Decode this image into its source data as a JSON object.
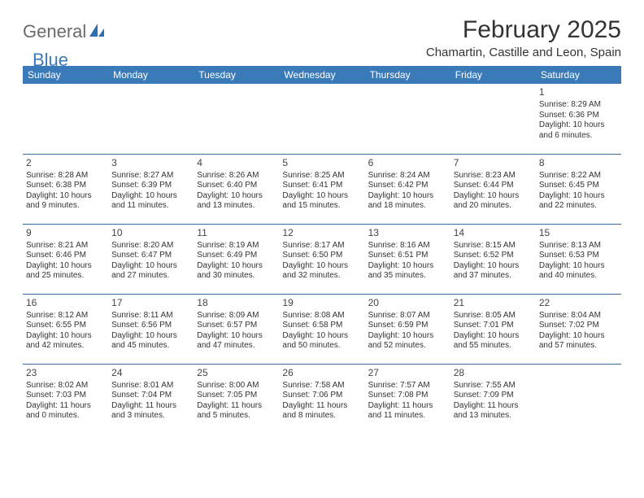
{
  "brand": {
    "part1": "General",
    "part2": "Blue"
  },
  "title": "February 2025",
  "location": "Chamartin, Castille and Leon, Spain",
  "colors": {
    "header_bg": "#3b7ab8",
    "header_text": "#ffffff",
    "row_border": "#3b6a97",
    "body_text": "#333333",
    "logo_gray": "#6b6b6b",
    "logo_blue": "#3b7ab8",
    "page_bg": "#ffffff"
  },
  "weekdays": [
    "Sunday",
    "Monday",
    "Tuesday",
    "Wednesday",
    "Thursday",
    "Friday",
    "Saturday"
  ],
  "weeks": [
    [
      null,
      null,
      null,
      null,
      null,
      null,
      {
        "n": "1",
        "sr": "Sunrise: 8:29 AM",
        "ss": "Sunset: 6:36 PM",
        "d1": "Daylight: 10 hours",
        "d2": "and 6 minutes."
      }
    ],
    [
      {
        "n": "2",
        "sr": "Sunrise: 8:28 AM",
        "ss": "Sunset: 6:38 PM",
        "d1": "Daylight: 10 hours",
        "d2": "and 9 minutes."
      },
      {
        "n": "3",
        "sr": "Sunrise: 8:27 AM",
        "ss": "Sunset: 6:39 PM",
        "d1": "Daylight: 10 hours",
        "d2": "and 11 minutes."
      },
      {
        "n": "4",
        "sr": "Sunrise: 8:26 AM",
        "ss": "Sunset: 6:40 PM",
        "d1": "Daylight: 10 hours",
        "d2": "and 13 minutes."
      },
      {
        "n": "5",
        "sr": "Sunrise: 8:25 AM",
        "ss": "Sunset: 6:41 PM",
        "d1": "Daylight: 10 hours",
        "d2": "and 15 minutes."
      },
      {
        "n": "6",
        "sr": "Sunrise: 8:24 AM",
        "ss": "Sunset: 6:42 PM",
        "d1": "Daylight: 10 hours",
        "d2": "and 18 minutes."
      },
      {
        "n": "7",
        "sr": "Sunrise: 8:23 AM",
        "ss": "Sunset: 6:44 PM",
        "d1": "Daylight: 10 hours",
        "d2": "and 20 minutes."
      },
      {
        "n": "8",
        "sr": "Sunrise: 8:22 AM",
        "ss": "Sunset: 6:45 PM",
        "d1": "Daylight: 10 hours",
        "d2": "and 22 minutes."
      }
    ],
    [
      {
        "n": "9",
        "sr": "Sunrise: 8:21 AM",
        "ss": "Sunset: 6:46 PM",
        "d1": "Daylight: 10 hours",
        "d2": "and 25 minutes."
      },
      {
        "n": "10",
        "sr": "Sunrise: 8:20 AM",
        "ss": "Sunset: 6:47 PM",
        "d1": "Daylight: 10 hours",
        "d2": "and 27 minutes."
      },
      {
        "n": "11",
        "sr": "Sunrise: 8:19 AM",
        "ss": "Sunset: 6:49 PM",
        "d1": "Daylight: 10 hours",
        "d2": "and 30 minutes."
      },
      {
        "n": "12",
        "sr": "Sunrise: 8:17 AM",
        "ss": "Sunset: 6:50 PM",
        "d1": "Daylight: 10 hours",
        "d2": "and 32 minutes."
      },
      {
        "n": "13",
        "sr": "Sunrise: 8:16 AM",
        "ss": "Sunset: 6:51 PM",
        "d1": "Daylight: 10 hours",
        "d2": "and 35 minutes."
      },
      {
        "n": "14",
        "sr": "Sunrise: 8:15 AM",
        "ss": "Sunset: 6:52 PM",
        "d1": "Daylight: 10 hours",
        "d2": "and 37 minutes."
      },
      {
        "n": "15",
        "sr": "Sunrise: 8:13 AM",
        "ss": "Sunset: 6:53 PM",
        "d1": "Daylight: 10 hours",
        "d2": "and 40 minutes."
      }
    ],
    [
      {
        "n": "16",
        "sr": "Sunrise: 8:12 AM",
        "ss": "Sunset: 6:55 PM",
        "d1": "Daylight: 10 hours",
        "d2": "and 42 minutes."
      },
      {
        "n": "17",
        "sr": "Sunrise: 8:11 AM",
        "ss": "Sunset: 6:56 PM",
        "d1": "Daylight: 10 hours",
        "d2": "and 45 minutes."
      },
      {
        "n": "18",
        "sr": "Sunrise: 8:09 AM",
        "ss": "Sunset: 6:57 PM",
        "d1": "Daylight: 10 hours",
        "d2": "and 47 minutes."
      },
      {
        "n": "19",
        "sr": "Sunrise: 8:08 AM",
        "ss": "Sunset: 6:58 PM",
        "d1": "Daylight: 10 hours",
        "d2": "and 50 minutes."
      },
      {
        "n": "20",
        "sr": "Sunrise: 8:07 AM",
        "ss": "Sunset: 6:59 PM",
        "d1": "Daylight: 10 hours",
        "d2": "and 52 minutes."
      },
      {
        "n": "21",
        "sr": "Sunrise: 8:05 AM",
        "ss": "Sunset: 7:01 PM",
        "d1": "Daylight: 10 hours",
        "d2": "and 55 minutes."
      },
      {
        "n": "22",
        "sr": "Sunrise: 8:04 AM",
        "ss": "Sunset: 7:02 PM",
        "d1": "Daylight: 10 hours",
        "d2": "and 57 minutes."
      }
    ],
    [
      {
        "n": "23",
        "sr": "Sunrise: 8:02 AM",
        "ss": "Sunset: 7:03 PM",
        "d1": "Daylight: 11 hours",
        "d2": "and 0 minutes."
      },
      {
        "n": "24",
        "sr": "Sunrise: 8:01 AM",
        "ss": "Sunset: 7:04 PM",
        "d1": "Daylight: 11 hours",
        "d2": "and 3 minutes."
      },
      {
        "n": "25",
        "sr": "Sunrise: 8:00 AM",
        "ss": "Sunset: 7:05 PM",
        "d1": "Daylight: 11 hours",
        "d2": "and 5 minutes."
      },
      {
        "n": "26",
        "sr": "Sunrise: 7:58 AM",
        "ss": "Sunset: 7:06 PM",
        "d1": "Daylight: 11 hours",
        "d2": "and 8 minutes."
      },
      {
        "n": "27",
        "sr": "Sunrise: 7:57 AM",
        "ss": "Sunset: 7:08 PM",
        "d1": "Daylight: 11 hours",
        "d2": "and 11 minutes."
      },
      {
        "n": "28",
        "sr": "Sunrise: 7:55 AM",
        "ss": "Sunset: 7:09 PM",
        "d1": "Daylight: 11 hours",
        "d2": "and 13 minutes."
      },
      null
    ]
  ]
}
